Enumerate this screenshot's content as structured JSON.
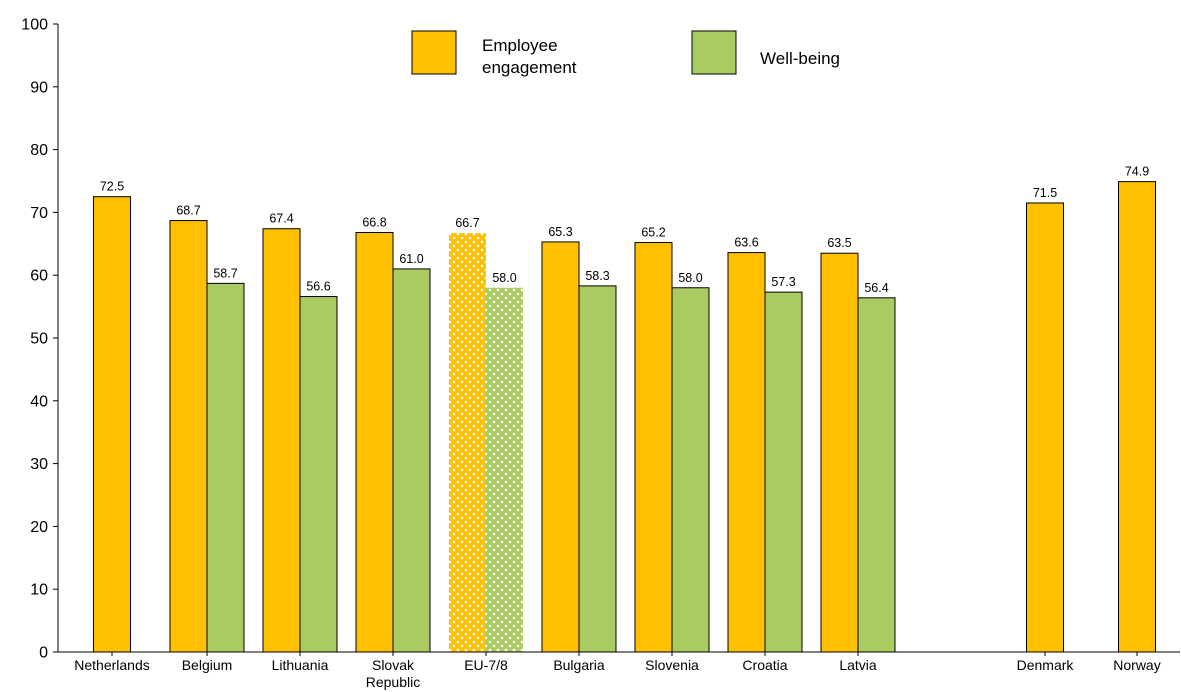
{
  "chart_data": {
    "type": "bar",
    "categories": [
      "Netherlands",
      "Belgium",
      "Lithuania",
      "Slovak Republic",
      "EU-7/8",
      "Bulgaria",
      "Slovenia",
      "Croatia",
      "Latvia",
      "Denmark",
      "Norway"
    ],
    "category_lines": [
      [
        "Netherlands"
      ],
      [
        "Belgium"
      ],
      [
        "Lithuania"
      ],
      [
        "Slovak",
        "Republic"
      ],
      [
        "EU-7/8"
      ],
      [
        "Bulgaria"
      ],
      [
        "Slovenia"
      ],
      [
        "Croatia"
      ],
      [
        "Latvia"
      ],
      [
        "Denmark"
      ],
      [
        "Norway"
      ]
    ],
    "series": [
      {
        "name": "Employee engagement",
        "name_lines": [
          "Employee",
          "engagement"
        ],
        "color": "#FFC000",
        "values": [
          72.5,
          68.7,
          67.4,
          66.8,
          66.7,
          65.3,
          65.2,
          63.6,
          63.5,
          71.5,
          74.9
        ],
        "labels": [
          "72.5",
          "68.7",
          "67.4",
          "66.8",
          "66.7",
          "65.3",
          "65.2",
          "63.6",
          "63.5",
          "71.5",
          "74.9"
        ]
      },
      {
        "name": "Well-being",
        "name_lines": [
          "Well-being"
        ],
        "color": "#A9CB62",
        "values": [
          null,
          58.7,
          56.6,
          61.0,
          58.0,
          58.3,
          58.0,
          57.3,
          56.4,
          null,
          null
        ],
        "labels": [
          null,
          "58.7",
          "56.6",
          "61.0",
          "58.0",
          "58.3",
          "58.0",
          "57.3",
          "56.4",
          null,
          null
        ]
      }
    ],
    "highlight_category": "EU-7/8",
    "highlight_pattern": "dotted",
    "ylim": [
      0,
      100
    ],
    "yticks": [
      "0",
      "10",
      "20",
      "30",
      "40",
      "50",
      "60",
      "70",
      "80",
      "90",
      "100"
    ],
    "title": "",
    "xlabel": "",
    "ylabel": "",
    "grid": false,
    "legend_position": "top-center"
  }
}
